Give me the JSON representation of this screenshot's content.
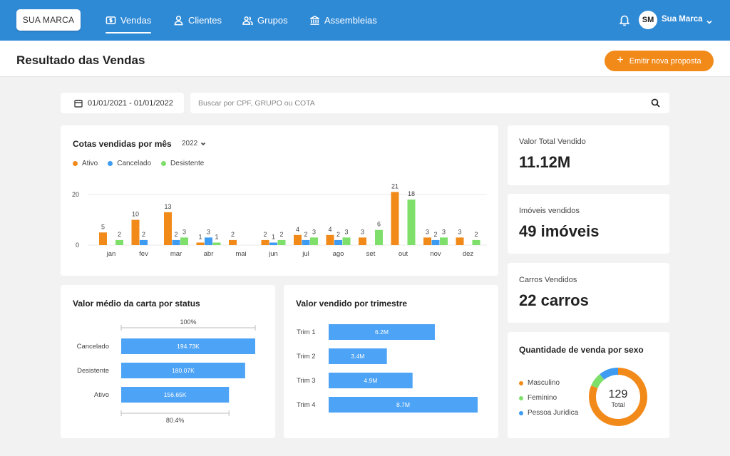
{
  "brand": "SUA MARCA",
  "nav": [
    {
      "label": "Vendas",
      "icon": "dollar-icon",
      "active": true
    },
    {
      "label": "Clientes",
      "icon": "user-icon",
      "active": false
    },
    {
      "label": "Grupos",
      "icon": "users-icon",
      "active": false
    },
    {
      "label": "Assembleias",
      "icon": "bank-icon",
      "active": false
    }
  ],
  "user": {
    "initials": "SM",
    "name": "Sua Marca"
  },
  "page_title": "Resultado das Vendas",
  "cta_label": "Emitir nova proposta",
  "filters": {
    "date_range": "01/01/2021 - 01/01/2022",
    "search_placeholder": "Buscar por CPF, GRUPO ou COTA"
  },
  "colors": {
    "ativo": "#f28a1a",
    "cancelado": "#3d9bf2",
    "desistente": "#7ee06b",
    "bar": "#4da3f5"
  },
  "monthly": {
    "title": "Cotas vendidas por mês",
    "year": "2022",
    "legend": [
      "Ativo",
      "Cancelado",
      "Desistente"
    ]
  },
  "avg_card": {
    "title": "Valor médio da carta por status",
    "top_label": "100%",
    "bottom_label": "80.4%"
  },
  "quarter_card": {
    "title": "Valor vendido por trimestre"
  },
  "stats": [
    {
      "label": "Valor Total Vendido",
      "value": "11.12M"
    },
    {
      "label": "Imóveis vendidos",
      "value": "49 imóveis"
    },
    {
      "label": "Carros Vendidos",
      "value": "22 carros"
    }
  ],
  "sex_card": {
    "title": "Quantidade de venda por sexo",
    "legend": [
      "Masculino",
      "Feminino",
      "Pessoa Jurídica"
    ],
    "total_value": "129",
    "total_label": "Total"
  },
  "chart_data": [
    {
      "type": "bar",
      "title": "Cotas vendidas por mês",
      "categories": [
        "jan",
        "fev",
        "mar",
        "abr",
        "mai",
        "jun",
        "jul",
        "ago",
        "set",
        "out",
        "nov",
        "dez"
      ],
      "series": [
        {
          "name": "Ativo",
          "values": [
            5,
            10,
            13,
            1,
            2,
            2,
            4,
            4,
            3,
            21,
            3,
            3
          ]
        },
        {
          "name": "Cancelado",
          "values": [
            0,
            2,
            2,
            3,
            0,
            1,
            2,
            2,
            0,
            0,
            2,
            0
          ]
        },
        {
          "name": "Desistente",
          "values": [
            2,
            0,
            3,
            1,
            0,
            2,
            3,
            3,
            6,
            18,
            3,
            2
          ]
        }
      ],
      "yticks": [
        0,
        20
      ],
      "ylim": [
        0,
        22
      ]
    },
    {
      "type": "bar",
      "title": "Valor médio da carta por status",
      "categories": [
        "Cancelado",
        "Desistente",
        "Ativo"
      ],
      "values": [
        194.73,
        180.07,
        156.65
      ],
      "labels": [
        "194.73K",
        "180.07K",
        "156.65K"
      ]
    },
    {
      "type": "bar",
      "title": "Valor vendido por trimestre",
      "categories": [
        "Trim 1",
        "Trim 2",
        "Trim 3",
        "Trim 4"
      ],
      "values": [
        6.2,
        3.4,
        4.9,
        8.7
      ],
      "labels": [
        "6.2M",
        "3.4M",
        "4.9M",
        "8.7M"
      ]
    },
    {
      "type": "pie",
      "title": "Quantidade de venda por sexo",
      "categories": [
        "Masculino",
        "Feminino",
        "Pessoa Jurídica"
      ],
      "values": [
        105,
        10,
        14
      ],
      "total": 129
    }
  ]
}
